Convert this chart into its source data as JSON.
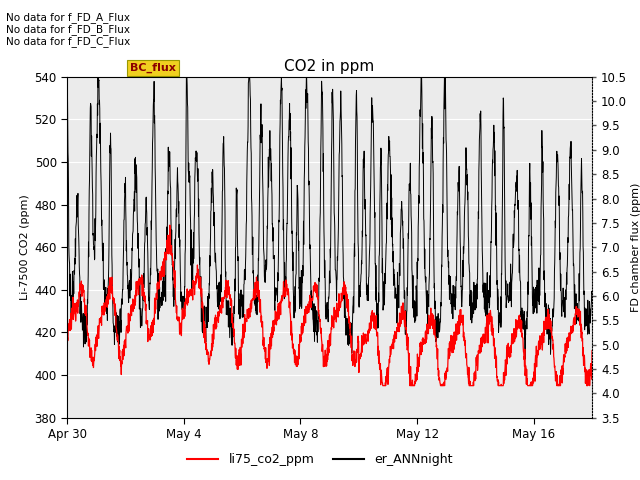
{
  "title": "CO2 in ppm",
  "ylabel_left": "Li-7500 CO2 (ppm)",
  "ylabel_right": "FD chamber flux (ppm)",
  "ylim_left": [
    380,
    540
  ],
  "ylim_right": [
    3.5,
    10.5
  ],
  "yticks_left": [
    380,
    400,
    420,
    440,
    460,
    480,
    500,
    520,
    540
  ],
  "yticks_right": [
    3.5,
    4.0,
    4.5,
    5.0,
    5.5,
    6.0,
    6.5,
    7.0,
    7.5,
    8.0,
    8.5,
    9.0,
    9.5,
    10.0,
    10.5
  ],
  "xtick_labels": [
    "Apr 30",
    "May 4",
    "May 8",
    "May 12",
    "May 16"
  ],
  "xtick_vals": [
    0,
    4,
    8,
    12,
    16
  ],
  "xlim": [
    0,
    18
  ],
  "no_data_texts": [
    "No data for f_FD_A_Flux",
    "No data for f_FD_B_Flux",
    "No data for f_FD_C_Flux"
  ],
  "bc_flux_label": "BC_flux",
  "legend_entries": [
    "li75_co2_ppm",
    "er_ANNnight"
  ],
  "legend_colors": [
    "#ff0000",
    "#000000"
  ],
  "plot_bg_color": "#ebebeb",
  "line1_color": "#ff0000",
  "line2_color": "#000000",
  "title_fontsize": 11,
  "axis_label_fontsize": 8,
  "tick_fontsize": 8.5,
  "nodata_fontsize": 7.5,
  "legend_fontsize": 9
}
